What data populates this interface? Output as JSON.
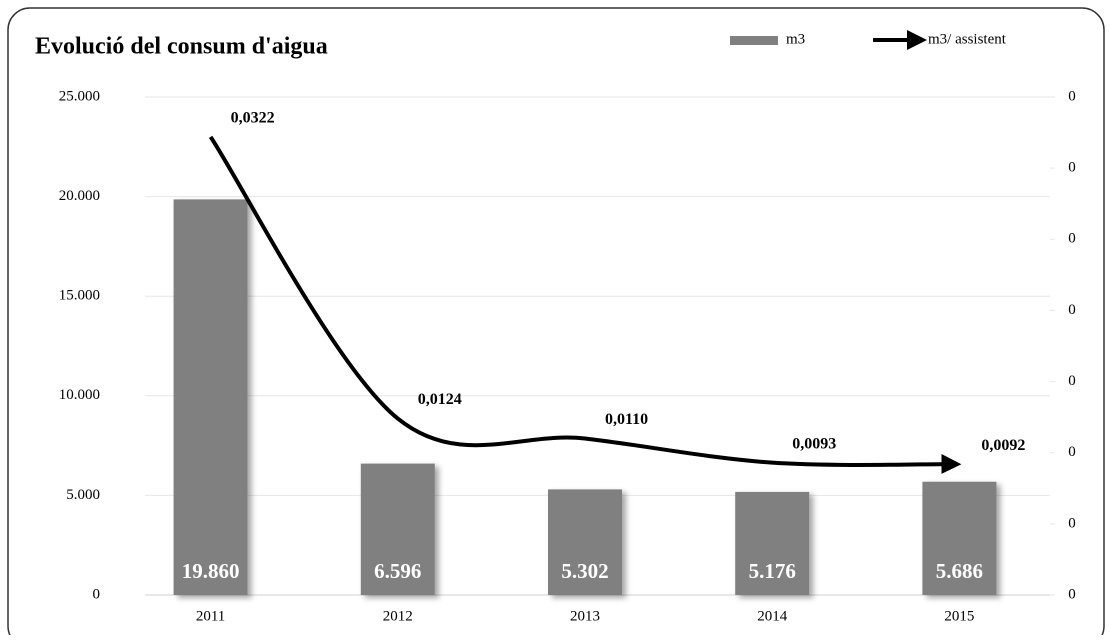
{
  "chart_data": {
    "type": "bar",
    "title": "Evolució del consum d'aigua",
    "categories": [
      "2011",
      "2012",
      "2013",
      "2014",
      "2015"
    ],
    "series": [
      {
        "name": "m3",
        "type": "bar",
        "color": "#808080",
        "values": [
          19860,
          6596,
          5302,
          5176,
          5686
        ],
        "value_labels": [
          "19.860",
          "6.596",
          "5.302",
          "5.176",
          "5.686"
        ]
      },
      {
        "name": "m3/ assistent",
        "type": "line",
        "axis": "y2",
        "color": "#000000",
        "values": [
          0.0322,
          0.0124,
          0.011,
          0.0093,
          0.0092
        ],
        "value_labels": [
          "0,0322",
          "0,0124",
          "0,0110",
          "0,0093",
          "0,0092"
        ]
      }
    ],
    "ylim": [
      0,
      25000
    ],
    "yticks": [
      0,
      {
        "value": 5000,
        "label": "5.000"
      },
      {
        "value": 10000,
        "label": "10.000"
      },
      {
        "value": 15000,
        "label": "15.000"
      },
      {
        "value": 20000,
        "label": "20.000"
      },
      {
        "value": 25000,
        "label": "25.000"
      }
    ],
    "y2lim": [
      0,
      0.035
    ],
    "y2ticks": [
      0,
      {
        "value": 0.005,
        "label": "0"
      },
      {
        "value": 0.01,
        "label": "0"
      },
      {
        "value": 0.015,
        "label": "0"
      },
      {
        "value": 0.02,
        "label": "0"
      },
      {
        "value": 0.025,
        "label": "0"
      },
      {
        "value": 0.03,
        "label": "0"
      },
      {
        "value": 0.035,
        "label": "0"
      }
    ],
    "grid": true
  }
}
